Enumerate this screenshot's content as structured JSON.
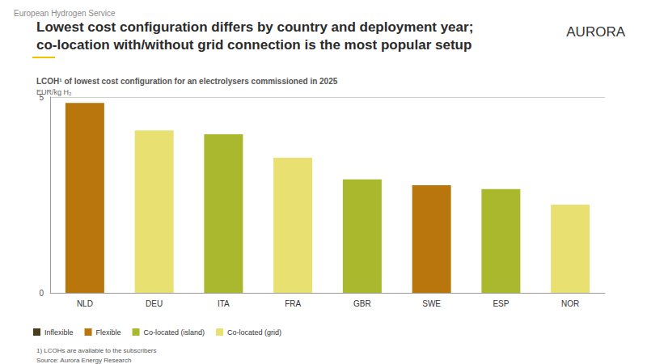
{
  "header": "European Hydrogen Service",
  "logo": "AURORA",
  "chart_data": {
    "type": "bar",
    "title": "Lowest cost configuration differs by country and deployment year;\nco-location with/without grid connection is the most popular setup",
    "subtitle": "LCOH¹ of lowest cost configuration for an electrolysers commissioned in 2025",
    "y_label": "EUR/kg H₂",
    "footnote": "1) LCOHs are available to the subscribers",
    "source": "Source: Aurora Energy Research",
    "categories": [
      "NLD",
      "DEU",
      "ITA",
      "FRA",
      "GBR",
      "SWE",
      "ESP",
      "NOR"
    ],
    "series": [
      {
        "name": "Inflexible",
        "color": "#4b3c1e",
        "values": [
          null,
          null,
          null,
          null,
          null,
          null,
          null,
          null
        ]
      },
      {
        "name": "Flexible",
        "color": "#b8760c",
        "values": [
          4.85,
          null,
          null,
          null,
          null,
          2.75,
          null,
          null
        ]
      },
      {
        "name": "Co-located (island)",
        "color": "#a9b82c",
        "values": [
          null,
          null,
          4.05,
          null,
          2.9,
          null,
          2.65,
          null
        ]
      },
      {
        "name": "Co-located (grid)",
        "color": "#e8e172",
        "values": [
          null,
          4.15,
          null,
          3.45,
          null,
          null,
          null,
          2.25
        ]
      }
    ],
    "ylim": [
      0,
      5
    ],
    "yticks": [
      0,
      5
    ],
    "grid": true,
    "legend": "bottom left"
  }
}
